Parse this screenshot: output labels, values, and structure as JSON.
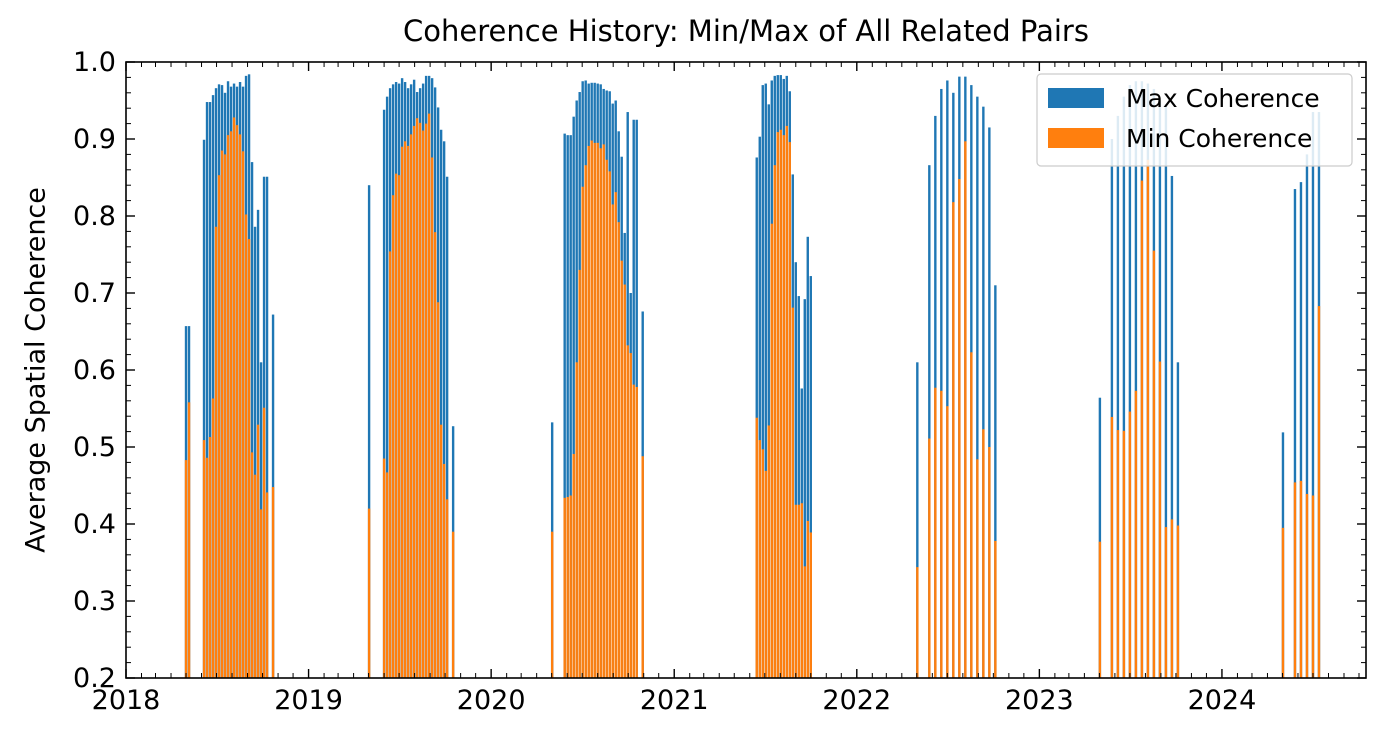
{
  "chart_data": {
    "type": "bar",
    "title": "Coherence History: Min/Max of All Related Pairs",
    "xlabel": "",
    "ylabel": "Average Spatial Coherence",
    "xlim": [
      "2018-01-01",
      "2024-10-15"
    ],
    "ylim": [
      0.2,
      1.0
    ],
    "yticks": [
      "0.2",
      "0.3",
      "0.4",
      "0.5",
      "0.6",
      "0.7",
      "0.8",
      "0.9",
      "1.0"
    ],
    "xticks": [
      "2018",
      "2019",
      "2020",
      "2021",
      "2022",
      "2023",
      "2024"
    ],
    "legend_position": "top-right",
    "grid": false,
    "series": [
      {
        "name": "Max Coherence",
        "color": "#1f77b4",
        "points": [
          [
            "2018-05-01",
            0.657
          ],
          [
            "2018-05-07",
            0.657
          ],
          [
            "2018-06-06",
            0.899
          ],
          [
            "2018-06-12",
            0.948
          ],
          [
            "2018-06-18",
            0.948
          ],
          [
            "2018-06-24",
            0.957
          ],
          [
            "2018-06-30",
            0.966
          ],
          [
            "2018-07-06",
            0.971
          ],
          [
            "2018-07-12",
            0.97
          ],
          [
            "2018-07-18",
            0.96
          ],
          [
            "2018-07-24",
            0.975
          ],
          [
            "2018-07-30",
            0.968
          ],
          [
            "2018-08-05",
            0.972
          ],
          [
            "2018-08-11",
            0.968
          ],
          [
            "2018-08-17",
            0.974
          ],
          [
            "2018-08-23",
            0.968
          ],
          [
            "2018-08-29",
            0.982
          ],
          [
            "2018-09-04",
            0.984
          ],
          [
            "2018-09-10",
            0.87
          ],
          [
            "2018-09-16",
            0.786
          ],
          [
            "2018-09-22",
            0.808
          ],
          [
            "2018-09-28",
            0.61
          ],
          [
            "2018-10-04",
            0.851
          ],
          [
            "2018-10-10",
            0.851
          ],
          [
            "2018-10-22",
            0.672
          ],
          [
            "2019-05-02",
            0.84
          ],
          [
            "2019-06-01",
            0.938
          ],
          [
            "2019-06-07",
            0.955
          ],
          [
            "2019-06-13",
            0.966
          ],
          [
            "2019-06-19",
            0.971
          ],
          [
            "2019-06-25",
            0.974
          ],
          [
            "2019-07-01",
            0.972
          ],
          [
            "2019-07-07",
            0.979
          ],
          [
            "2019-07-13",
            0.974
          ],
          [
            "2019-07-19",
            0.966
          ],
          [
            "2019-07-25",
            0.971
          ],
          [
            "2019-07-31",
            0.977
          ],
          [
            "2019-08-06",
            0.961
          ],
          [
            "2019-08-12",
            0.966
          ],
          [
            "2019-08-18",
            0.972
          ],
          [
            "2019-08-24",
            0.982
          ],
          [
            "2019-08-30",
            0.982
          ],
          [
            "2019-09-05",
            0.979
          ],
          [
            "2019-09-11",
            0.967
          ],
          [
            "2019-09-17",
            0.941
          ],
          [
            "2019-09-23",
            0.912
          ],
          [
            "2019-09-29",
            0.897
          ],
          [
            "2019-10-05",
            0.851
          ],
          [
            "2019-10-17",
            0.527
          ],
          [
            "2020-05-02",
            0.532
          ],
          [
            "2020-05-27",
            0.907
          ],
          [
            "2020-06-02",
            0.905
          ],
          [
            "2020-06-08",
            0.905
          ],
          [
            "2020-06-14",
            0.929
          ],
          [
            "2020-06-20",
            0.95
          ],
          [
            "2020-06-26",
            0.961
          ],
          [
            "2020-07-02",
            0.975
          ],
          [
            "2020-07-08",
            0.976
          ],
          [
            "2020-07-14",
            0.972
          ],
          [
            "2020-07-20",
            0.973
          ],
          [
            "2020-07-26",
            0.973
          ],
          [
            "2020-08-01",
            0.972
          ],
          [
            "2020-08-07",
            0.971
          ],
          [
            "2020-08-13",
            0.965
          ],
          [
            "2020-08-19",
            0.963
          ],
          [
            "2020-08-25",
            0.962
          ],
          [
            "2020-08-31",
            0.946
          ],
          [
            "2020-09-06",
            0.95
          ],
          [
            "2020-09-12",
            0.91
          ],
          [
            "2020-09-18",
            0.877
          ],
          [
            "2020-09-24",
            0.778
          ],
          [
            "2020-09-30",
            0.935
          ],
          [
            "2020-10-06",
            0.7
          ],
          [
            "2020-10-12",
            0.925
          ],
          [
            "2020-10-18",
            0.925
          ],
          [
            "2020-10-30",
            0.676
          ],
          [
            "2021-06-15",
            0.876
          ],
          [
            "2021-06-21",
            0.903
          ],
          [
            "2021-06-27",
            0.97
          ],
          [
            "2021-07-03",
            0.972
          ],
          [
            "2021-07-09",
            0.945
          ],
          [
            "2021-07-15",
            0.976
          ],
          [
            "2021-07-21",
            0.982
          ],
          [
            "2021-07-27",
            0.983
          ],
          [
            "2021-08-02",
            0.983
          ],
          [
            "2021-08-08",
            0.978
          ],
          [
            "2021-08-14",
            0.982
          ],
          [
            "2021-08-20",
            0.962
          ],
          [
            "2021-08-26",
            0.854
          ],
          [
            "2021-09-01",
            0.74
          ],
          [
            "2021-09-07",
            0.696
          ],
          [
            "2021-09-13",
            0.576
          ],
          [
            "2021-09-19",
            0.692
          ],
          [
            "2021-09-25",
            0.773
          ],
          [
            "2021-10-01",
            0.722
          ],
          [
            "2022-05-02",
            0.61
          ],
          [
            "2022-05-26",
            0.866
          ],
          [
            "2022-06-07",
            0.93
          ],
          [
            "2022-06-19",
            0.965
          ],
          [
            "2022-07-01",
            0.976
          ],
          [
            "2022-07-13",
            0.96
          ],
          [
            "2022-07-25",
            0.981
          ],
          [
            "2022-08-06",
            0.981
          ],
          [
            "2022-08-18",
            0.97
          ],
          [
            "2022-08-30",
            0.955
          ],
          [
            "2022-09-11",
            0.942
          ],
          [
            "2022-09-23",
            0.915
          ],
          [
            "2022-10-05",
            0.71
          ],
          [
            "2023-05-02",
            0.564
          ],
          [
            "2023-05-26",
            0.9
          ],
          [
            "2023-06-07",
            0.93
          ],
          [
            "2023-06-19",
            0.955
          ],
          [
            "2023-07-01",
            0.97
          ],
          [
            "2023-07-13",
            0.975
          ],
          [
            "2023-07-25",
            0.975
          ],
          [
            "2023-08-06",
            0.972
          ],
          [
            "2023-08-18",
            0.965
          ],
          [
            "2023-08-30",
            0.95
          ],
          [
            "2023-09-11",
            0.945
          ],
          [
            "2023-09-23",
            0.852
          ],
          [
            "2023-10-05",
            0.61
          ],
          [
            "2024-05-02",
            0.519
          ],
          [
            "2024-05-26",
            0.835
          ],
          [
            "2024-06-07",
            0.844
          ],
          [
            "2024-06-19",
            0.88
          ],
          [
            "2024-07-01",
            0.935
          ],
          [
            "2024-07-13",
            0.935
          ]
        ]
      },
      {
        "name": "Min Coherence",
        "color": "#ff7f0e",
        "points": [
          [
            "2018-05-01",
            0.483
          ],
          [
            "2018-05-07",
            0.558
          ],
          [
            "2018-06-06",
            0.509
          ],
          [
            "2018-06-12",
            0.486
          ],
          [
            "2018-06-18",
            0.513
          ],
          [
            "2018-06-24",
            0.563
          ],
          [
            "2018-06-30",
            0.786
          ],
          [
            "2018-07-06",
            0.853
          ],
          [
            "2018-07-12",
            0.885
          ],
          [
            "2018-07-18",
            0.88
          ],
          [
            "2018-07-24",
            0.905
          ],
          [
            "2018-07-30",
            0.91
          ],
          [
            "2018-08-05",
            0.928
          ],
          [
            "2018-08-11",
            0.918
          ],
          [
            "2018-08-17",
            0.906
          ],
          [
            "2018-08-23",
            0.884
          ],
          [
            "2018-08-29",
            0.802
          ],
          [
            "2018-09-04",
            0.77
          ],
          [
            "2018-09-10",
            0.493
          ],
          [
            "2018-09-16",
            0.464
          ],
          [
            "2018-09-22",
            0.529
          ],
          [
            "2018-09-28",
            0.419
          ],
          [
            "2018-10-04",
            0.551
          ],
          [
            "2018-10-10",
            0.441
          ],
          [
            "2018-10-22",
            0.448
          ],
          [
            "2019-05-02",
            0.42
          ],
          [
            "2019-06-01",
            0.485
          ],
          [
            "2019-06-07",
            0.467
          ],
          [
            "2019-06-13",
            0.754
          ],
          [
            "2019-06-19",
            0.827
          ],
          [
            "2019-06-25",
            0.855
          ],
          [
            "2019-07-01",
            0.853
          ],
          [
            "2019-07-07",
            0.89
          ],
          [
            "2019-07-13",
            0.897
          ],
          [
            "2019-07-19",
            0.891
          ],
          [
            "2019-07-25",
            0.906
          ],
          [
            "2019-07-31",
            0.917
          ],
          [
            "2019-08-06",
            0.927
          ],
          [
            "2019-08-12",
            0.921
          ],
          [
            "2019-08-18",
            0.911
          ],
          [
            "2019-08-24",
            0.92
          ],
          [
            "2019-08-30",
            0.933
          ],
          [
            "2019-09-05",
            0.876
          ],
          [
            "2019-09-11",
            0.779
          ],
          [
            "2019-09-17",
            0.688
          ],
          [
            "2019-09-23",
            0.529
          ],
          [
            "2019-09-29",
            0.478
          ],
          [
            "2019-10-05",
            0.432
          ],
          [
            "2019-10-17",
            0.39
          ],
          [
            "2020-05-02",
            0.39
          ],
          [
            "2020-05-27",
            0.434
          ],
          [
            "2020-06-02",
            0.435
          ],
          [
            "2020-06-08",
            0.437
          ],
          [
            "2020-06-14",
            0.491
          ],
          [
            "2020-06-20",
            0.61
          ],
          [
            "2020-06-26",
            0.73
          ],
          [
            "2020-07-02",
            0.838
          ],
          [
            "2020-07-08",
            0.866
          ],
          [
            "2020-07-14",
            0.891
          ],
          [
            "2020-07-20",
            0.898
          ],
          [
            "2020-07-26",
            0.895
          ],
          [
            "2020-08-01",
            0.895
          ],
          [
            "2020-08-07",
            0.888
          ],
          [
            "2020-08-13",
            0.893
          ],
          [
            "2020-08-19",
            0.873
          ],
          [
            "2020-08-25",
            0.858
          ],
          [
            "2020-08-31",
            0.815
          ],
          [
            "2020-09-06",
            0.831
          ],
          [
            "2020-09-12",
            0.792
          ],
          [
            "2020-09-18",
            0.742
          ],
          [
            "2020-09-24",
            0.711
          ],
          [
            "2020-09-30",
            0.632
          ],
          [
            "2020-10-06",
            0.622
          ],
          [
            "2020-10-12",
            0.581
          ],
          [
            "2020-10-18",
            0.578
          ],
          [
            "2020-10-30",
            0.488
          ],
          [
            "2021-06-15",
            0.538
          ],
          [
            "2021-06-21",
            0.509
          ],
          [
            "2021-06-27",
            0.497
          ],
          [
            "2021-07-03",
            0.469
          ],
          [
            "2021-07-09",
            0.528
          ],
          [
            "2021-07-15",
            0.79
          ],
          [
            "2021-07-21",
            0.866
          ],
          [
            "2021-07-27",
            0.909
          ],
          [
            "2021-08-02",
            0.912
          ],
          [
            "2021-08-08",
            0.905
          ],
          [
            "2021-08-14",
            0.917
          ],
          [
            "2021-08-20",
            0.896
          ],
          [
            "2021-08-26",
            0.681
          ],
          [
            "2021-09-01",
            0.425
          ],
          [
            "2021-09-07",
            0.425
          ],
          [
            "2021-09-13",
            0.427
          ],
          [
            "2021-09-19",
            0.345
          ],
          [
            "2021-09-25",
            0.404
          ],
          [
            "2021-10-01",
            0.389
          ],
          [
            "2022-05-02",
            0.344
          ],
          [
            "2022-05-26",
            0.511
          ],
          [
            "2022-06-07",
            0.577
          ],
          [
            "2022-06-19",
            0.573
          ],
          [
            "2022-07-01",
            0.553
          ],
          [
            "2022-07-13",
            0.818
          ],
          [
            "2022-07-25",
            0.848
          ],
          [
            "2022-08-06",
            0.897
          ],
          [
            "2022-08-18",
            0.623
          ],
          [
            "2022-08-30",
            0.484
          ],
          [
            "2022-09-11",
            0.523
          ],
          [
            "2022-09-23",
            0.5
          ],
          [
            "2022-10-05",
            0.378
          ],
          [
            "2023-05-02",
            0.377
          ],
          [
            "2023-05-26",
            0.539
          ],
          [
            "2023-06-07",
            0.522
          ],
          [
            "2023-06-19",
            0.521
          ],
          [
            "2023-07-01",
            0.546
          ],
          [
            "2023-07-13",
            0.573
          ],
          [
            "2023-07-25",
            0.846
          ],
          [
            "2023-08-06",
            0.873
          ],
          [
            "2023-08-18",
            0.755
          ],
          [
            "2023-08-30",
            0.611
          ],
          [
            "2023-09-11",
            0.396
          ],
          [
            "2023-09-23",
            0.406
          ],
          [
            "2023-10-05",
            0.398
          ],
          [
            "2024-05-02",
            0.395
          ],
          [
            "2024-05-26",
            0.454
          ],
          [
            "2024-06-07",
            0.456
          ],
          [
            "2024-06-19",
            0.439
          ],
          [
            "2024-07-01",
            0.437
          ],
          [
            "2024-07-13",
            0.683
          ]
        ]
      }
    ]
  }
}
